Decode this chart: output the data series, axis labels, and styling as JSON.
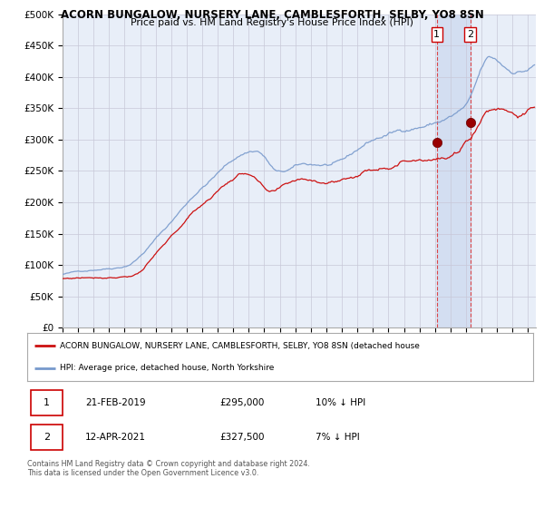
{
  "title": "ACORN BUNGALOW, NURSERY LANE, CAMBLESFORTH, SELBY, YO8 8SN",
  "subtitle": "Price paid vs. HM Land Registry's House Price Index (HPI)",
  "background_color": "#ffffff",
  "plot_bg_color": "#e8eef8",
  "grid_color": "#c8c8d8",
  "hpi_color": "#7799cc",
  "price_color": "#cc1111",
  "sale1_date_label": "21-FEB-2019",
  "sale1_price_label": "£295,000",
  "sale1_hpi_pct": "10% ↓ HPI",
  "sale2_date_label": "12-APR-2021",
  "sale2_price_label": "£327,500",
  "sale2_hpi_pct": "7% ↓ HPI",
  "legend_label1": "ACORN BUNGALOW, NURSERY LANE, CAMBLESFORTH, SELBY, YO8 8SN (detached house",
  "legend_label2": "HPI: Average price, detached house, North Yorkshire",
  "copyright_text": "Contains HM Land Registry data © Crown copyright and database right 2024.\nThis data is licensed under the Open Government Licence v3.0.",
  "sale1_x": 2019.12,
  "sale1_y": 295000,
  "sale2_x": 2021.27,
  "sale2_y": 327500,
  "ylim": [
    0,
    500000
  ],
  "xlim_start": 1995.0,
  "xlim_end": 2025.5,
  "shade_color": "#d0dcf0"
}
